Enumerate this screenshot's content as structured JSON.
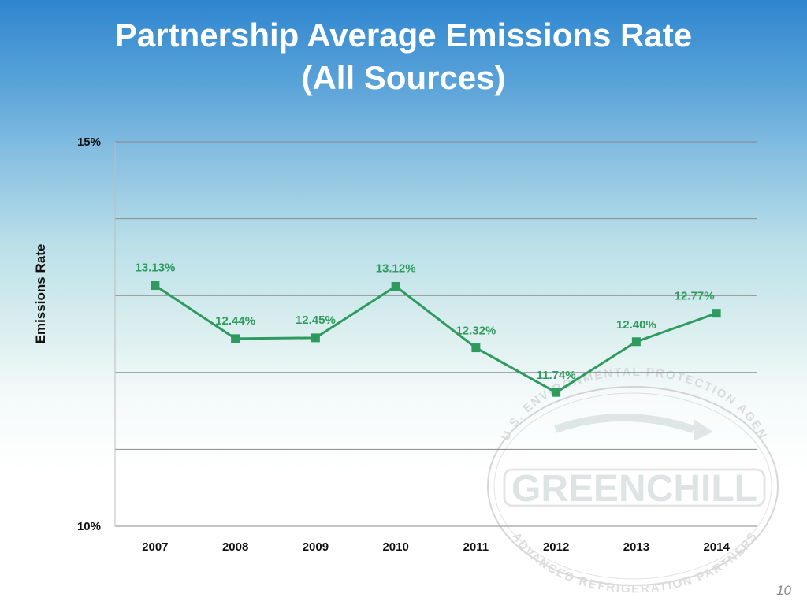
{
  "slide": {
    "title_line1": "Partnership Average Emissions Rate",
    "title_line2": "(All Sources)",
    "page_number": "10"
  },
  "watermark": {
    "top_text": "U.S. ENVIRONMENTAL PROTECTION AGENCY",
    "brand": "GREENCHILL",
    "bottom_text": "ADVANCED REFRIGERATION PARTNERSHIP"
  },
  "colors": {
    "series": "#2e9a5e",
    "label": "#2e9a5e",
    "grid": "#8a8a8a"
  },
  "chart_data": {
    "type": "line",
    "title": "",
    "xlabel": "",
    "ylabel": "Emissions Rate",
    "x": [
      "2007",
      "2008",
      "2009",
      "2010",
      "2011",
      "2012",
      "2013",
      "2014"
    ],
    "series": [
      {
        "values": [
          13.13,
          12.44,
          12.45,
          13.12,
          12.32,
          11.74,
          12.4,
          12.77
        ],
        "labels": [
          "13.13%",
          "12.44%",
          "12.45%",
          "13.12%",
          "12.32%",
          "11.74%",
          "12.40%",
          "12.77%"
        ]
      }
    ],
    "ylim": [
      10,
      15
    ],
    "yticks": [
      10,
      11,
      12,
      13,
      14,
      15
    ],
    "ytick_labels": [
      "10%",
      "",
      "",
      "",
      "",
      "15%"
    ],
    "grid": true,
    "marker": "square"
  }
}
